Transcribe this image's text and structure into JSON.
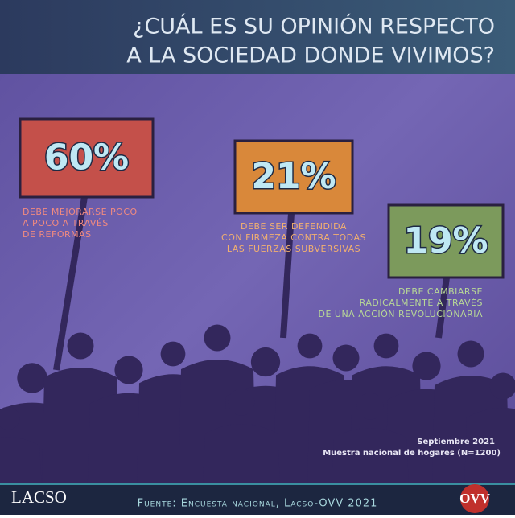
{
  "chart_data": {
    "type": "placard",
    "title": [
      "¿CUÁL ES SU OPINIÓN RESPECTO",
      "A LA SOCIEDAD DONDE VIVIMOS?"
    ],
    "categories": [
      [
        "DEBE MEJORARSE POCO",
        "A POCO A TRAVÉS",
        "DE REFORMAS"
      ],
      [
        "DEBE SER DEFENDIDA",
        "CON FIRMEZA CONTRA TODAS",
        "LAS FUERZAS SUBVERSIVAS"
      ],
      [
        "DEBE CAMBIARSE",
        "RADICALMENTE A TRAVÉS",
        "DE UNA ACCIÓN REVOLUCIONARIA"
      ]
    ],
    "values": [
      60,
      21,
      19
    ],
    "value_labels": [
      "60%",
      "21%",
      "19%"
    ],
    "colors": [
      "#c4504a",
      "#d9883a",
      "#7c9a5c"
    ],
    "label_colors": [
      "#f08a80",
      "#f2b070",
      "#b8d896"
    ],
    "notes": [
      "Septiembre 2021",
      "Muestra nacional de hogares (N=1200)"
    ],
    "source": "Fuente: Encuesta nacional, Lacso-OVV 2021",
    "logos": [
      "LACSO",
      "OVV"
    ]
  }
}
